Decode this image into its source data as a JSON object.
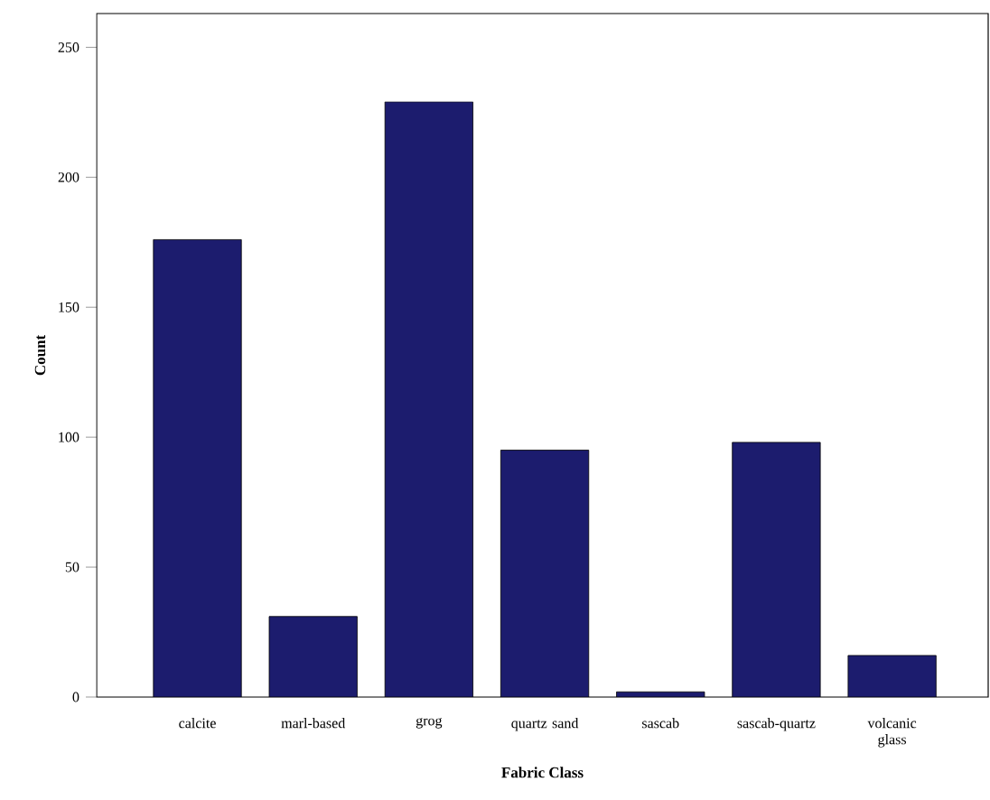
{
  "chart_data": {
    "type": "bar",
    "xlabel": "Fabric Class",
    "ylabel": "Count",
    "categories": [
      "calcite",
      "marl-based",
      "grog",
      "quartz sand",
      "sascab",
      "sascab-quartz",
      "volcanic glass"
    ],
    "values": [
      176,
      31,
      229,
      95,
      2,
      98,
      16
    ],
    "color": "#1c1c6e",
    "ylim": [
      0,
      263
    ],
    "yticks": [
      0,
      50,
      100,
      150,
      200,
      250
    ]
  }
}
